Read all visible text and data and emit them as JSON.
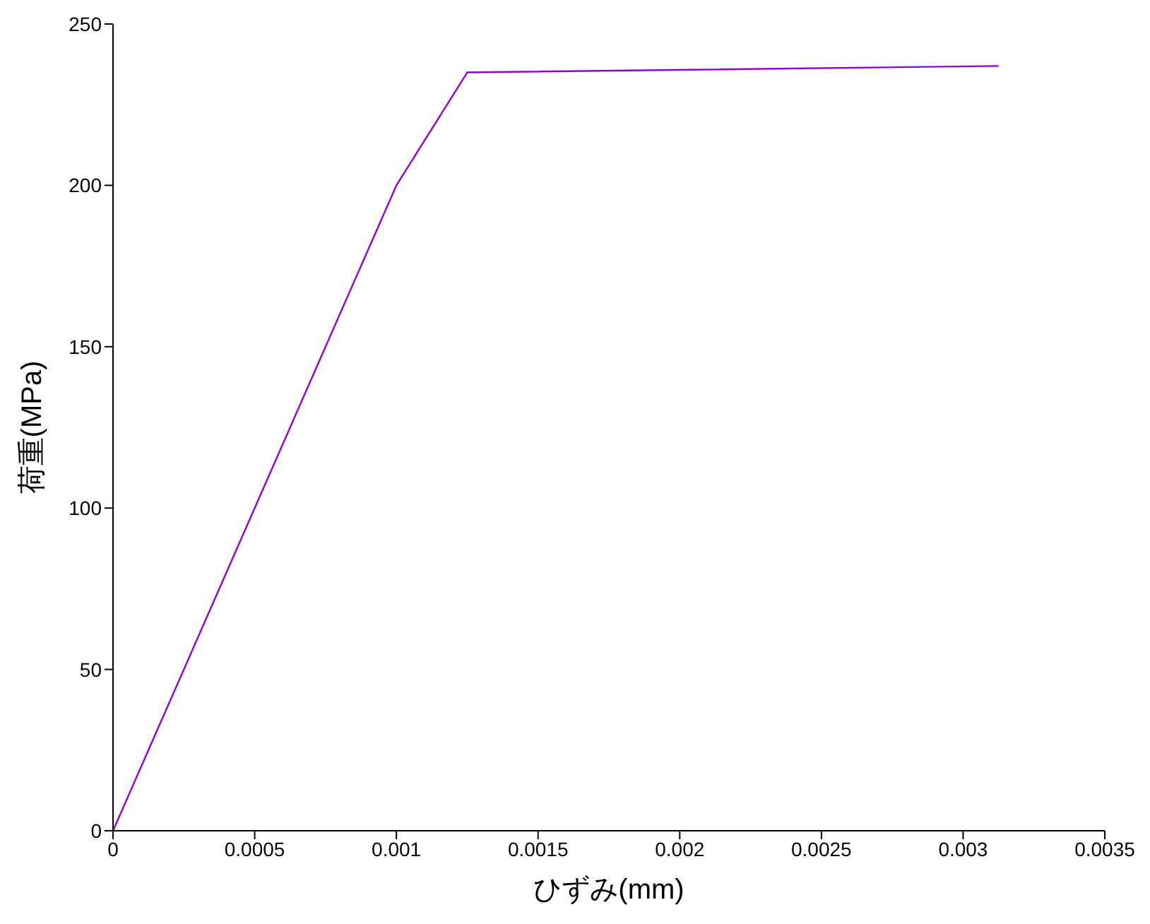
{
  "chart_data": {
    "type": "line",
    "xlabel": "ひずみ(mm)",
    "ylabel": "荷重(MPa)",
    "series": [
      {
        "color": "#9400d3",
        "x": [
          0,
          0.001,
          0.00125,
          0.003125
        ],
        "values": [
          0,
          200,
          235,
          237
        ]
      }
    ],
    "xlim": [
      0,
      0.0035
    ],
    "xticks": [
      0,
      0.0005,
      0.001,
      0.0015,
      0.002,
      0.0025,
      0.003,
      0.0035
    ],
    "ylim": [
      0,
      250
    ],
    "yticks": [
      0,
      50,
      100,
      150,
      200,
      250
    ],
    "grid": false,
    "legend": false,
    "marker": "none",
    "line_style": "solid"
  }
}
